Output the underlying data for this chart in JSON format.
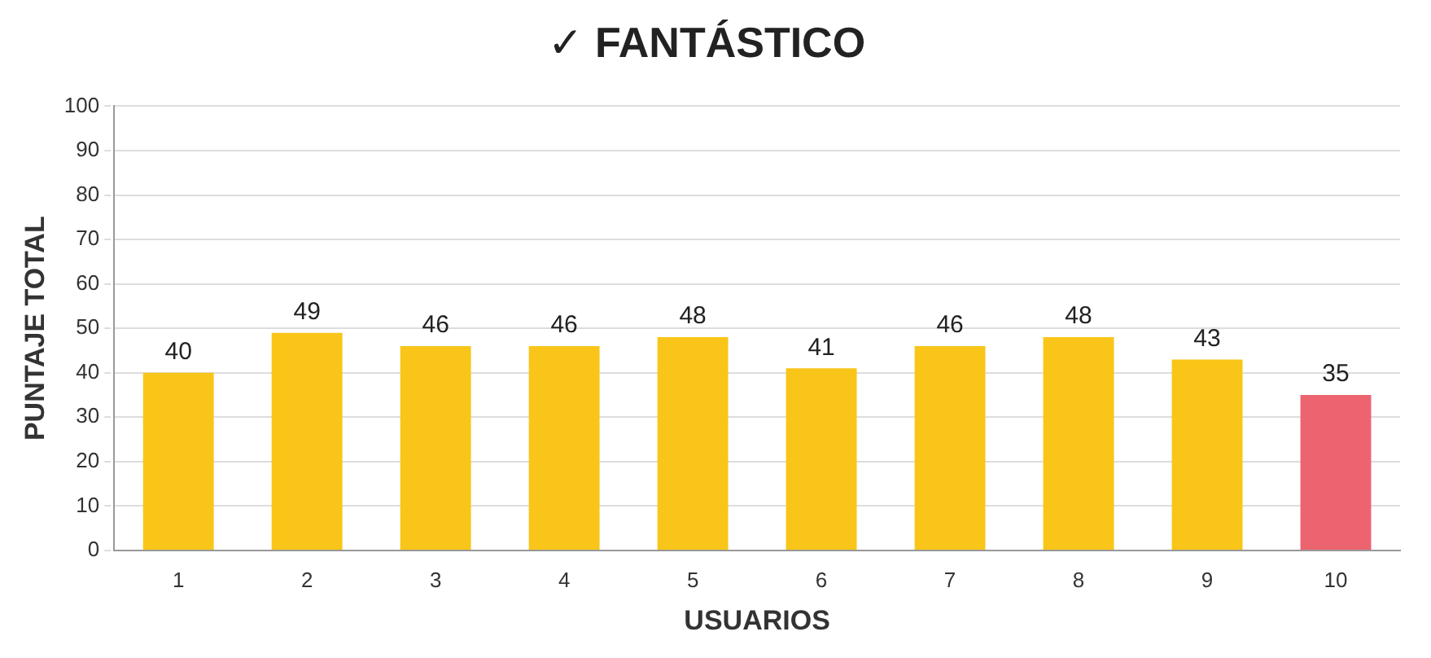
{
  "chart_data": {
    "type": "bar",
    "title": "✓ FANTÁSTICO",
    "xlabel": "USUARIOS",
    "ylabel": "PUNTAJE TOTAL",
    "categories": [
      "1",
      "2",
      "3",
      "4",
      "5",
      "6",
      "7",
      "8",
      "9",
      "10"
    ],
    "values": [
      40,
      49,
      46,
      46,
      48,
      41,
      46,
      48,
      43,
      35
    ],
    "colors": [
      "#f9c518",
      "#f9c518",
      "#f9c518",
      "#f9c518",
      "#f9c518",
      "#f9c518",
      "#f9c518",
      "#f9c518",
      "#f9c518",
      "#ec6470"
    ],
    "ylim": [
      0,
      100
    ],
    "yticks": [
      0,
      10,
      20,
      30,
      40,
      50,
      60,
      70,
      80,
      90,
      100
    ],
    "grid": "y",
    "data_labels": true,
    "legend": false
  }
}
